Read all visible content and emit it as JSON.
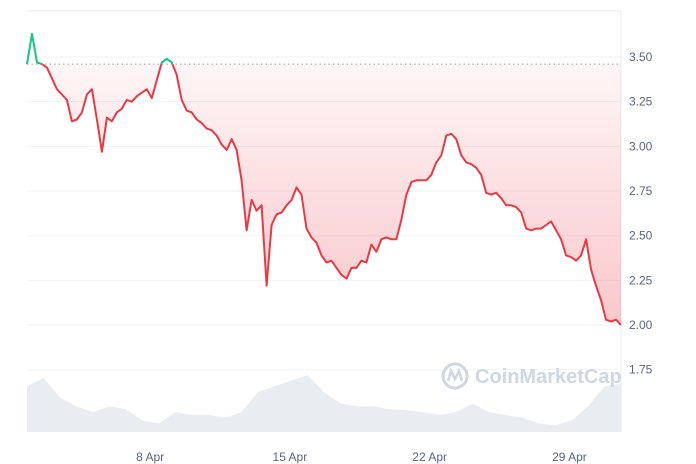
{
  "chart_data": {
    "type": "line",
    "title": "",
    "xlabel": "",
    "ylabel": "",
    "ylim": [
      1.75,
      3.5
    ],
    "y_ticks": [
      "3.50",
      "3.25",
      "3.00",
      "2.75",
      "2.50",
      "2.25",
      "2.00",
      "1.75"
    ],
    "x_ticks": [
      {
        "label": "8 Apr",
        "date": "04-08 00:00"
      },
      {
        "label": "15 Apr",
        "date": "04-15 00:00"
      },
      {
        "label": "22 Apr",
        "date": "04-22 00:00"
      },
      {
        "label": "29 Apr",
        "date": "04-29 00:00"
      }
    ],
    "baseline": 3.46,
    "grid": true,
    "colors": {
      "up": "#16c784",
      "down": "#ea3943",
      "volume": "#e9ecf1",
      "grid": "#eff2f5"
    },
    "price": [
      3.46,
      3.63,
      3.47,
      3.46,
      3.44,
      3.38,
      3.32,
      3.29,
      3.26,
      3.14,
      3.15,
      3.19,
      3.29,
      3.32,
      3.15,
      2.97,
      3.16,
      3.14,
      3.19,
      3.21,
      3.26,
      3.25,
      3.28,
      3.3,
      3.32,
      3.27,
      3.37,
      3.47,
      3.49,
      3.47,
      3.4,
      3.26,
      3.2,
      3.19,
      3.15,
      3.13,
      3.1,
      3.09,
      3.06,
      3.01,
      2.98,
      3.04,
      2.98,
      2.81,
      2.53,
      2.7,
      2.64,
      2.67,
      2.22,
      2.56,
      2.62,
      2.63,
      2.67,
      2.7,
      2.77,
      2.73,
      2.54,
      2.49,
      2.46,
      2.39,
      2.35,
      2.36,
      2.32,
      2.28,
      2.26,
      2.32,
      2.32,
      2.36,
      2.35,
      2.45,
      2.41,
      2.48,
      2.49,
      2.48,
      2.48,
      2.59,
      2.73,
      2.8,
      2.81,
      2.81,
      2.81,
      2.84,
      2.91,
      2.95,
      3.06,
      3.07,
      3.04,
      2.95,
      2.91,
      2.9,
      2.88,
      2.84,
      2.74,
      2.73,
      2.74,
      2.71,
      2.67,
      2.67,
      2.66,
      2.63,
      2.54,
      2.53,
      2.54,
      2.54,
      2.56,
      2.58,
      2.53,
      2.48,
      2.39,
      2.38,
      2.36,
      2.39,
      2.48,
      2.31,
      2.22,
      2.14,
      2.03,
      2.02,
      2.03,
      2.0
    ],
    "time_range": [
      "04-01 20:00",
      "05-01 14:00"
    ],
    "volume_relative": [
      0.8,
      0.95,
      0.6,
      0.45,
      0.35,
      0.45,
      0.4,
      0.2,
      0.15,
      0.35,
      0.3,
      0.3,
      0.25,
      0.35,
      0.7,
      0.8,
      0.9,
      1.0,
      0.7,
      0.5,
      0.45,
      0.45,
      0.4,
      0.38,
      0.35,
      0.3,
      0.35,
      0.5,
      0.35,
      0.3,
      0.25,
      0.15,
      0.12,
      0.2,
      0.45,
      0.8,
      0.85
    ]
  },
  "watermark": "CoinMarketCap"
}
